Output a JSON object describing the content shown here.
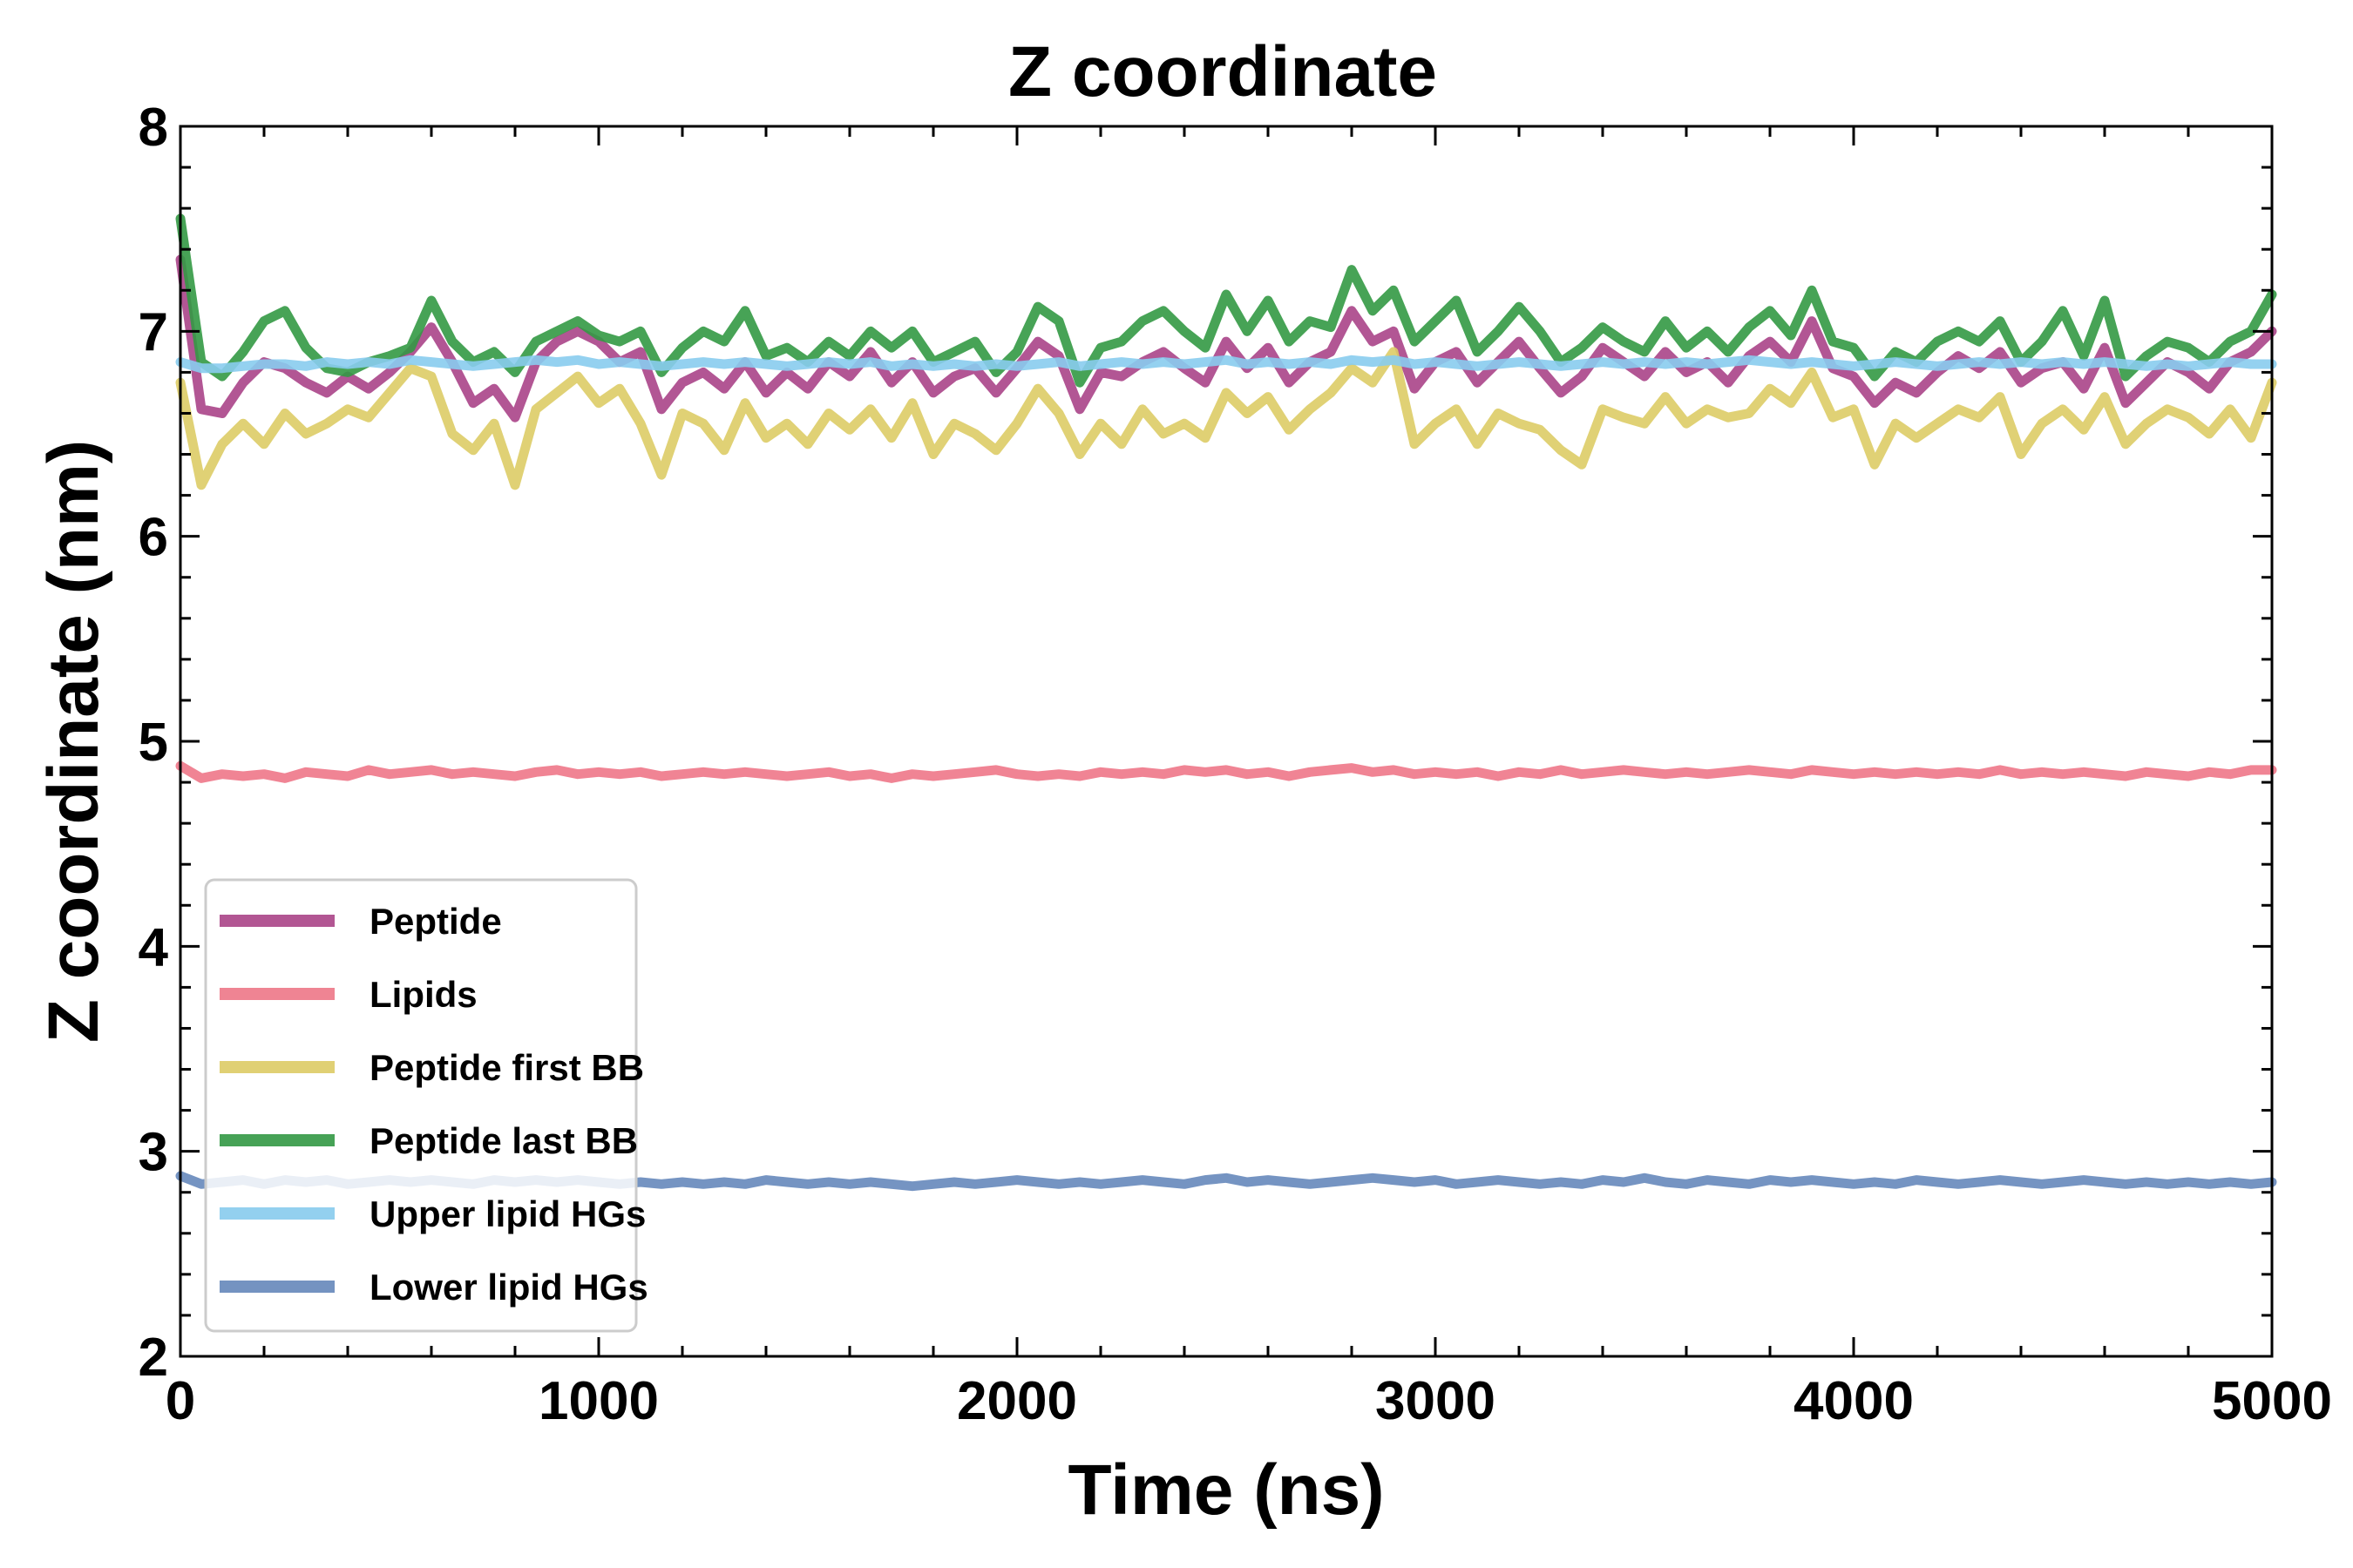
{
  "chart_data": {
    "type": "line",
    "title": "Z coordinate",
    "xlabel": "Time (ns)",
    "ylabel": "Z coordinate (nm)",
    "xlim": [
      0,
      5000
    ],
    "ylim": [
      2,
      8
    ],
    "x_ticks": [
      0,
      1000,
      2000,
      3000,
      4000,
      5000
    ],
    "y_ticks": [
      2,
      3,
      4,
      5,
      6,
      7,
      8
    ],
    "x_tick_labels": [
      "0",
      "1000",
      "2000",
      "3000",
      "4000",
      "5000"
    ],
    "y_tick_labels": [
      "2",
      "3",
      "4",
      "5",
      "6",
      "7",
      "8"
    ],
    "grid": false,
    "legend_position": "lower-left",
    "x": [
      0,
      50,
      100,
      150,
      200,
      250,
      300,
      350,
      400,
      450,
      500,
      550,
      600,
      650,
      700,
      750,
      800,
      850,
      900,
      950,
      1000,
      1050,
      1100,
      1150,
      1200,
      1250,
      1300,
      1350,
      1400,
      1450,
      1500,
      1550,
      1600,
      1650,
      1700,
      1750,
      1800,
      1850,
      1900,
      1950,
      2000,
      2050,
      2100,
      2150,
      2200,
      2250,
      2300,
      2350,
      2400,
      2450,
      2500,
      2550,
      2600,
      2650,
      2700,
      2750,
      2800,
      2850,
      2900,
      2950,
      3000,
      3050,
      3100,
      3150,
      3200,
      3250,
      3300,
      3350,
      3400,
      3450,
      3500,
      3550,
      3600,
      3650,
      3700,
      3750,
      3800,
      3850,
      3900,
      3950,
      4000,
      4050,
      4100,
      4150,
      4200,
      4250,
      4300,
      4350,
      4400,
      4450,
      4500,
      4550,
      4600,
      4650,
      4700,
      4750,
      4800,
      4850,
      4900,
      4950,
      5000
    ],
    "series": [
      {
        "name": "Peptide",
        "color": "#aa4488",
        "values": [
          7.35,
          6.62,
          6.6,
          6.75,
          6.85,
          6.82,
          6.75,
          6.7,
          6.78,
          6.72,
          6.8,
          6.9,
          7.02,
          6.85,
          6.65,
          6.72,
          6.58,
          6.85,
          6.95,
          7.0,
          6.95,
          6.85,
          6.9,
          6.62,
          6.75,
          6.8,
          6.72,
          6.85,
          6.7,
          6.8,
          6.72,
          6.85,
          6.78,
          6.9,
          6.75,
          6.85,
          6.7,
          6.78,
          6.82,
          6.7,
          6.82,
          6.95,
          6.88,
          6.62,
          6.8,
          6.78,
          6.85,
          6.9,
          6.82,
          6.75,
          6.95,
          6.82,
          6.92,
          6.75,
          6.85,
          6.9,
          7.1,
          6.95,
          7.0,
          6.72,
          6.85,
          6.9,
          6.75,
          6.85,
          6.95,
          6.82,
          6.7,
          6.78,
          6.92,
          6.85,
          6.78,
          6.9,
          6.8,
          6.85,
          6.75,
          6.88,
          6.95,
          6.85,
          7.05,
          6.82,
          6.78,
          6.65,
          6.75,
          6.7,
          6.8,
          6.88,
          6.82,
          6.9,
          6.75,
          6.82,
          6.85,
          6.72,
          6.92,
          6.65,
          6.75,
          6.85,
          6.8,
          6.72,
          6.85,
          6.9,
          7.0
        ]
      },
      {
        "name": "Lipids",
        "color": "#ee7788",
        "values": [
          4.88,
          4.82,
          4.84,
          4.83,
          4.84,
          4.82,
          4.85,
          4.84,
          4.83,
          4.86,
          4.84,
          4.85,
          4.86,
          4.84,
          4.85,
          4.84,
          4.83,
          4.85,
          4.86,
          4.84,
          4.85,
          4.84,
          4.85,
          4.83,
          4.84,
          4.85,
          4.84,
          4.85,
          4.84,
          4.83,
          4.84,
          4.85,
          4.83,
          4.84,
          4.82,
          4.84,
          4.83,
          4.84,
          4.85,
          4.86,
          4.84,
          4.83,
          4.84,
          4.83,
          4.85,
          4.84,
          4.85,
          4.84,
          4.86,
          4.85,
          4.86,
          4.84,
          4.85,
          4.83,
          4.85,
          4.86,
          4.87,
          4.85,
          4.86,
          4.84,
          4.85,
          4.84,
          4.85,
          4.83,
          4.85,
          4.84,
          4.86,
          4.84,
          4.85,
          4.86,
          4.85,
          4.84,
          4.85,
          4.84,
          4.85,
          4.86,
          4.85,
          4.84,
          4.86,
          4.85,
          4.84,
          4.85,
          4.84,
          4.85,
          4.84,
          4.85,
          4.84,
          4.86,
          4.84,
          4.85,
          4.84,
          4.85,
          4.84,
          4.83,
          4.85,
          4.84,
          4.83,
          4.85,
          4.84,
          4.86,
          4.86
        ]
      },
      {
        "name": "Peptide first BB",
        "color": "#ddcc66",
        "values": [
          6.75,
          6.25,
          6.45,
          6.55,
          6.45,
          6.6,
          6.5,
          6.55,
          6.62,
          6.58,
          6.7,
          6.82,
          6.78,
          6.5,
          6.42,
          6.55,
          6.25,
          6.62,
          6.7,
          6.78,
          6.65,
          6.72,
          6.55,
          6.3,
          6.6,
          6.55,
          6.42,
          6.65,
          6.48,
          6.55,
          6.45,
          6.6,
          6.52,
          6.62,
          6.48,
          6.65,
          6.4,
          6.55,
          6.5,
          6.42,
          6.55,
          6.72,
          6.6,
          6.4,
          6.55,
          6.45,
          6.62,
          6.5,
          6.55,
          6.48,
          6.7,
          6.6,
          6.68,
          6.52,
          6.62,
          6.7,
          6.82,
          6.75,
          6.9,
          6.45,
          6.55,
          6.62,
          6.45,
          6.6,
          6.55,
          6.52,
          6.42,
          6.35,
          6.62,
          6.58,
          6.55,
          6.68,
          6.55,
          6.62,
          6.58,
          6.6,
          6.72,
          6.65,
          6.8,
          6.58,
          6.62,
          6.35,
          6.55,
          6.48,
          6.55,
          6.62,
          6.58,
          6.68,
          6.4,
          6.55,
          6.62,
          6.52,
          6.68,
          6.45,
          6.55,
          6.62,
          6.58,
          6.5,
          6.62,
          6.48,
          6.75
        ]
      },
      {
        "name": "Peptide last BB",
        "color": "#339944",
        "values": [
          7.55,
          6.85,
          6.78,
          6.9,
          7.05,
          7.1,
          6.92,
          6.82,
          6.8,
          6.85,
          6.88,
          6.92,
          7.15,
          6.95,
          6.85,
          6.9,
          6.8,
          6.95,
          7.0,
          7.05,
          6.98,
          6.95,
          7.0,
          6.8,
          6.92,
          7.0,
          6.95,
          7.1,
          6.88,
          6.92,
          6.85,
          6.95,
          6.88,
          7.0,
          6.92,
          7.0,
          6.85,
          6.9,
          6.95,
          6.8,
          6.9,
          7.12,
          7.05,
          6.75,
          6.92,
          6.95,
          7.05,
          7.1,
          7.0,
          6.92,
          7.18,
          7.0,
          7.15,
          6.95,
          7.05,
          7.02,
          7.3,
          7.1,
          7.2,
          6.95,
          7.05,
          7.15,
          6.9,
          7.0,
          7.12,
          7.0,
          6.85,
          6.92,
          7.02,
          6.95,
          6.9,
          7.05,
          6.92,
          7.0,
          6.9,
          7.02,
          7.1,
          6.98,
          7.2,
          6.95,
          6.92,
          6.78,
          6.9,
          6.85,
          6.95,
          7.0,
          6.95,
          7.05,
          6.85,
          6.95,
          7.1,
          6.88,
          7.15,
          6.78,
          6.88,
          6.95,
          6.92,
          6.85,
          6.95,
          7.0,
          7.18
        ]
      },
      {
        "name": "Upper lipid HGs",
        "color": "#88ccee",
        "values": [
          6.85,
          6.82,
          6.82,
          6.83,
          6.84,
          6.84,
          6.83,
          6.85,
          6.84,
          6.85,
          6.84,
          6.86,
          6.85,
          6.84,
          6.83,
          6.84,
          6.85,
          6.86,
          6.85,
          6.86,
          6.84,
          6.85,
          6.84,
          6.83,
          6.84,
          6.85,
          6.84,
          6.85,
          6.84,
          6.83,
          6.84,
          6.85,
          6.84,
          6.85,
          6.83,
          6.84,
          6.83,
          6.84,
          6.83,
          6.84,
          6.83,
          6.84,
          6.85,
          6.83,
          6.84,
          6.85,
          6.84,
          6.85,
          6.84,
          6.85,
          6.86,
          6.84,
          6.85,
          6.84,
          6.85,
          6.84,
          6.86,
          6.85,
          6.86,
          6.84,
          6.85,
          6.84,
          6.83,
          6.84,
          6.85,
          6.84,
          6.83,
          6.84,
          6.85,
          6.84,
          6.85,
          6.84,
          6.85,
          6.84,
          6.85,
          6.86,
          6.85,
          6.84,
          6.85,
          6.84,
          6.83,
          6.84,
          6.85,
          6.84,
          6.83,
          6.84,
          6.85,
          6.84,
          6.85,
          6.84,
          6.85,
          6.84,
          6.85,
          6.84,
          6.83,
          6.84,
          6.83,
          6.84,
          6.85,
          6.84,
          6.84
        ]
      },
      {
        "name": "Lower lipid HGs",
        "color": "#6688bb",
        "values": [
          2.88,
          2.84,
          2.85,
          2.86,
          2.84,
          2.86,
          2.85,
          2.86,
          2.84,
          2.85,
          2.86,
          2.85,
          2.86,
          2.85,
          2.84,
          2.86,
          2.85,
          2.86,
          2.85,
          2.86,
          2.85,
          2.84,
          2.85,
          2.84,
          2.85,
          2.84,
          2.85,
          2.84,
          2.86,
          2.85,
          2.84,
          2.85,
          2.84,
          2.85,
          2.84,
          2.83,
          2.84,
          2.85,
          2.84,
          2.85,
          2.86,
          2.85,
          2.84,
          2.85,
          2.84,
          2.85,
          2.86,
          2.85,
          2.84,
          2.86,
          2.87,
          2.85,
          2.86,
          2.85,
          2.84,
          2.85,
          2.86,
          2.87,
          2.86,
          2.85,
          2.86,
          2.84,
          2.85,
          2.86,
          2.85,
          2.84,
          2.85,
          2.84,
          2.86,
          2.85,
          2.87,
          2.85,
          2.84,
          2.86,
          2.85,
          2.84,
          2.86,
          2.85,
          2.86,
          2.85,
          2.84,
          2.85,
          2.84,
          2.86,
          2.85,
          2.84,
          2.85,
          2.86,
          2.85,
          2.84,
          2.85,
          2.86,
          2.85,
          2.84,
          2.85,
          2.84,
          2.85,
          2.84,
          2.85,
          2.84,
          2.85
        ]
      }
    ]
  }
}
